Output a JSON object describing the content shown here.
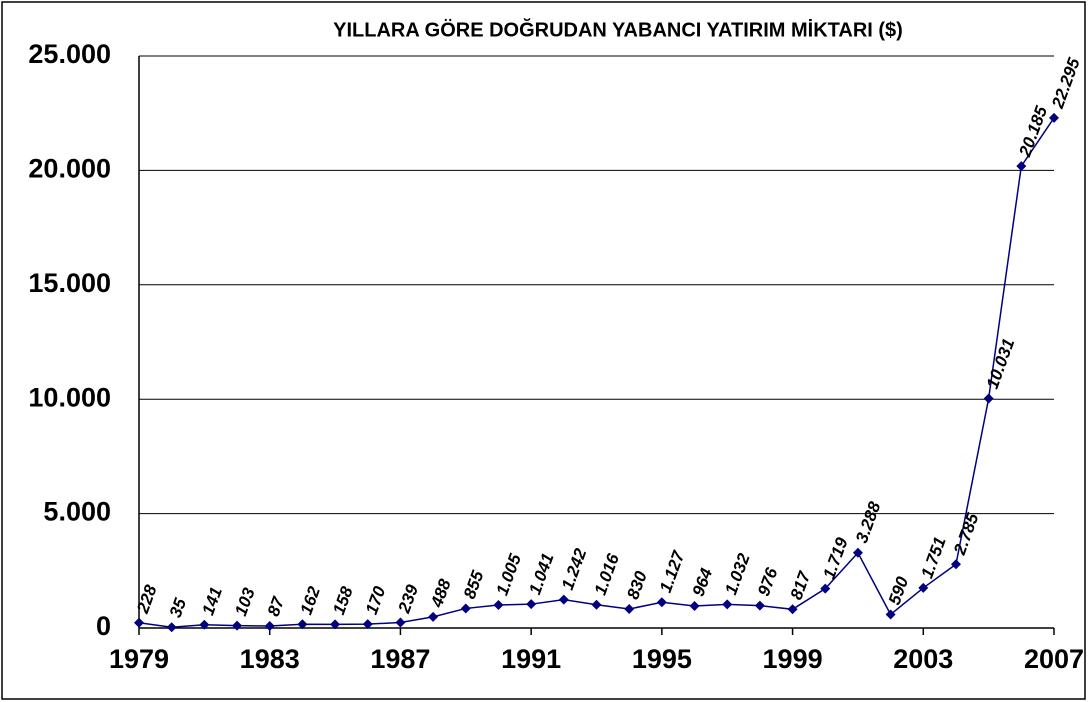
{
  "chart_data": {
    "type": "line",
    "title": "YILLARA GÖRE DOĞRUDAN YABANCI YATIRIM MİKTARI ($)",
    "x": [
      1979,
      1980,
      1981,
      1982,
      1983,
      1984,
      1985,
      1986,
      1987,
      1988,
      1989,
      1990,
      1991,
      1992,
      1993,
      1994,
      1995,
      1996,
      1997,
      1998,
      1999,
      2000,
      2001,
      2002,
      2003,
      2004,
      2005,
      2006,
      2007
    ],
    "series": [
      {
        "color": "#000080",
        "values": [
          228,
          35,
          141,
          103,
          87,
          162,
          158,
          170,
          239,
          488,
          855,
          1005,
          1041,
          1242,
          1016,
          830,
          1127,
          964,
          1032,
          976,
          817,
          1719,
          3288,
          590,
          1751,
          2785,
          10031,
          20185,
          22295
        ],
        "value_labels": [
          "228",
          "35",
          "141",
          "103",
          "87",
          "162",
          "158",
          "170",
          "239",
          "488",
          "855",
          "1.005",
          "1.041",
          "1.242",
          "1.016",
          "830",
          "1.127",
          "964",
          "1.032",
          "976",
          "817",
          "1.719",
          "3.288",
          "590",
          "1.751",
          "2.785",
          "10.031",
          "20.185",
          "22.295"
        ]
      }
    ],
    "xlim": [
      1979,
      2007
    ],
    "xticks": [
      1979,
      1983,
      1987,
      1991,
      1995,
      1999,
      2003,
      2007
    ],
    "ylim": [
      0,
      25000
    ],
    "yticks": [
      0,
      {
        "value": 5000,
        "label": "5.000"
      },
      {
        "value": 10000,
        "label": "10.000"
      },
      {
        "value": 15000,
        "label": "15.000"
      },
      {
        "value": 20000,
        "label": "20.000"
      },
      {
        "value": 25000,
        "label": "25.000"
      }
    ],
    "grid": true
  }
}
